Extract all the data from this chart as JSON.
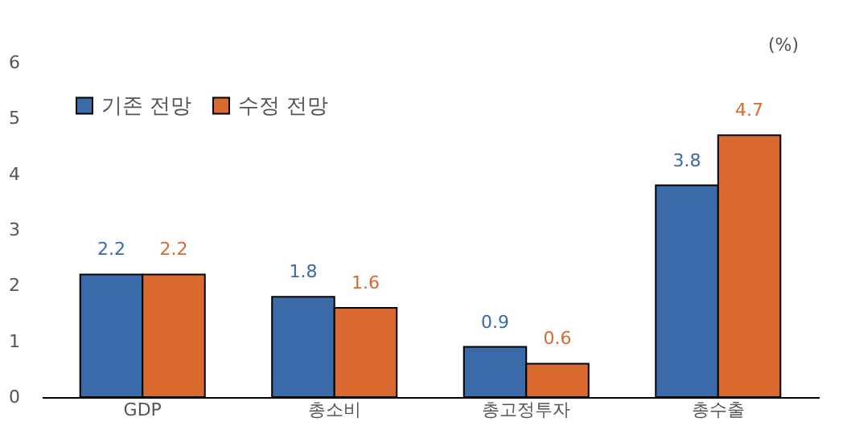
{
  "chart_data": {
    "type": "bar",
    "ylabel": "(%)",
    "categories": [
      "GDP",
      "총소비",
      "총고정투자",
      "총수출"
    ],
    "series": [
      {
        "name": "기존 전망",
        "color": "#3a6aa8",
        "values": [
          2.2,
          1.8,
          0.9,
          3.8
        ]
      },
      {
        "name": "수정 전망",
        "color": "#d9692e",
        "values": [
          2.2,
          1.6,
          0.6,
          4.7
        ]
      }
    ],
    "ylim": [
      0,
      6
    ],
    "yticks": [
      0,
      1,
      2,
      3,
      4,
      5,
      6
    ],
    "grid": false,
    "legend": "top left",
    "data_labels": true
  }
}
